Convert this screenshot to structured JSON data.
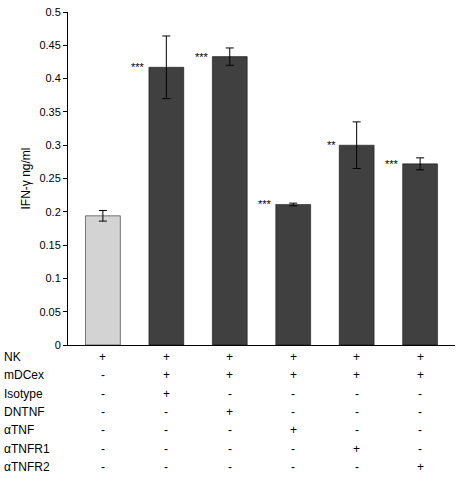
{
  "chart_data": {
    "type": "bar",
    "y_label": "IFN-γ ng/ml",
    "categories": [
      null,
      null,
      null,
      null,
      null,
      null
    ],
    "values": [
      0.194,
      0.417,
      0.433,
      0.211,
      0.3,
      0.272
    ],
    "errors": [
      0.008,
      0.047,
      0.013,
      0.002,
      0.035,
      0.009
    ],
    "colors": [
      "#d3d3d3",
      "#404040",
      "#404040",
      "#404040",
      "#404040",
      "#404040"
    ],
    "significance": [
      null,
      "***",
      "***",
      "***",
      "**",
      "***"
    ],
    "conditions": [
      {
        "label": "NK",
        "marks": [
          "+",
          "+",
          "+",
          "+",
          "+",
          "+"
        ]
      },
      {
        "label": "mDCex",
        "marks": [
          "-",
          "+",
          "+",
          "+",
          "+",
          "+"
        ]
      },
      {
        "label": "Isotype",
        "marks": [
          "-",
          "+",
          "-",
          "-",
          "-",
          "-"
        ]
      },
      {
        "label": "DNTNF",
        "marks": [
          "-",
          "-",
          "+",
          "-",
          "-",
          "-"
        ]
      },
      {
        "label": "αTNF",
        "marks": [
          "-",
          "-",
          "-",
          "+",
          "-",
          "-"
        ]
      },
      {
        "label": "αTNFR1",
        "marks": [
          "-",
          "-",
          "-",
          "-",
          "+",
          "-"
        ]
      },
      {
        "label": "αTNFR2",
        "marks": [
          "-",
          "-",
          "-",
          "-",
          "-",
          "+"
        ]
      }
    ],
    "ylim": [
      0,
      0.5
    ],
    "yticks": [
      0,
      0.05,
      0.1,
      0.15,
      0.2,
      0.25,
      0.3,
      0.35,
      0.4,
      0.45,
      0.5
    ],
    "grid": false
  }
}
